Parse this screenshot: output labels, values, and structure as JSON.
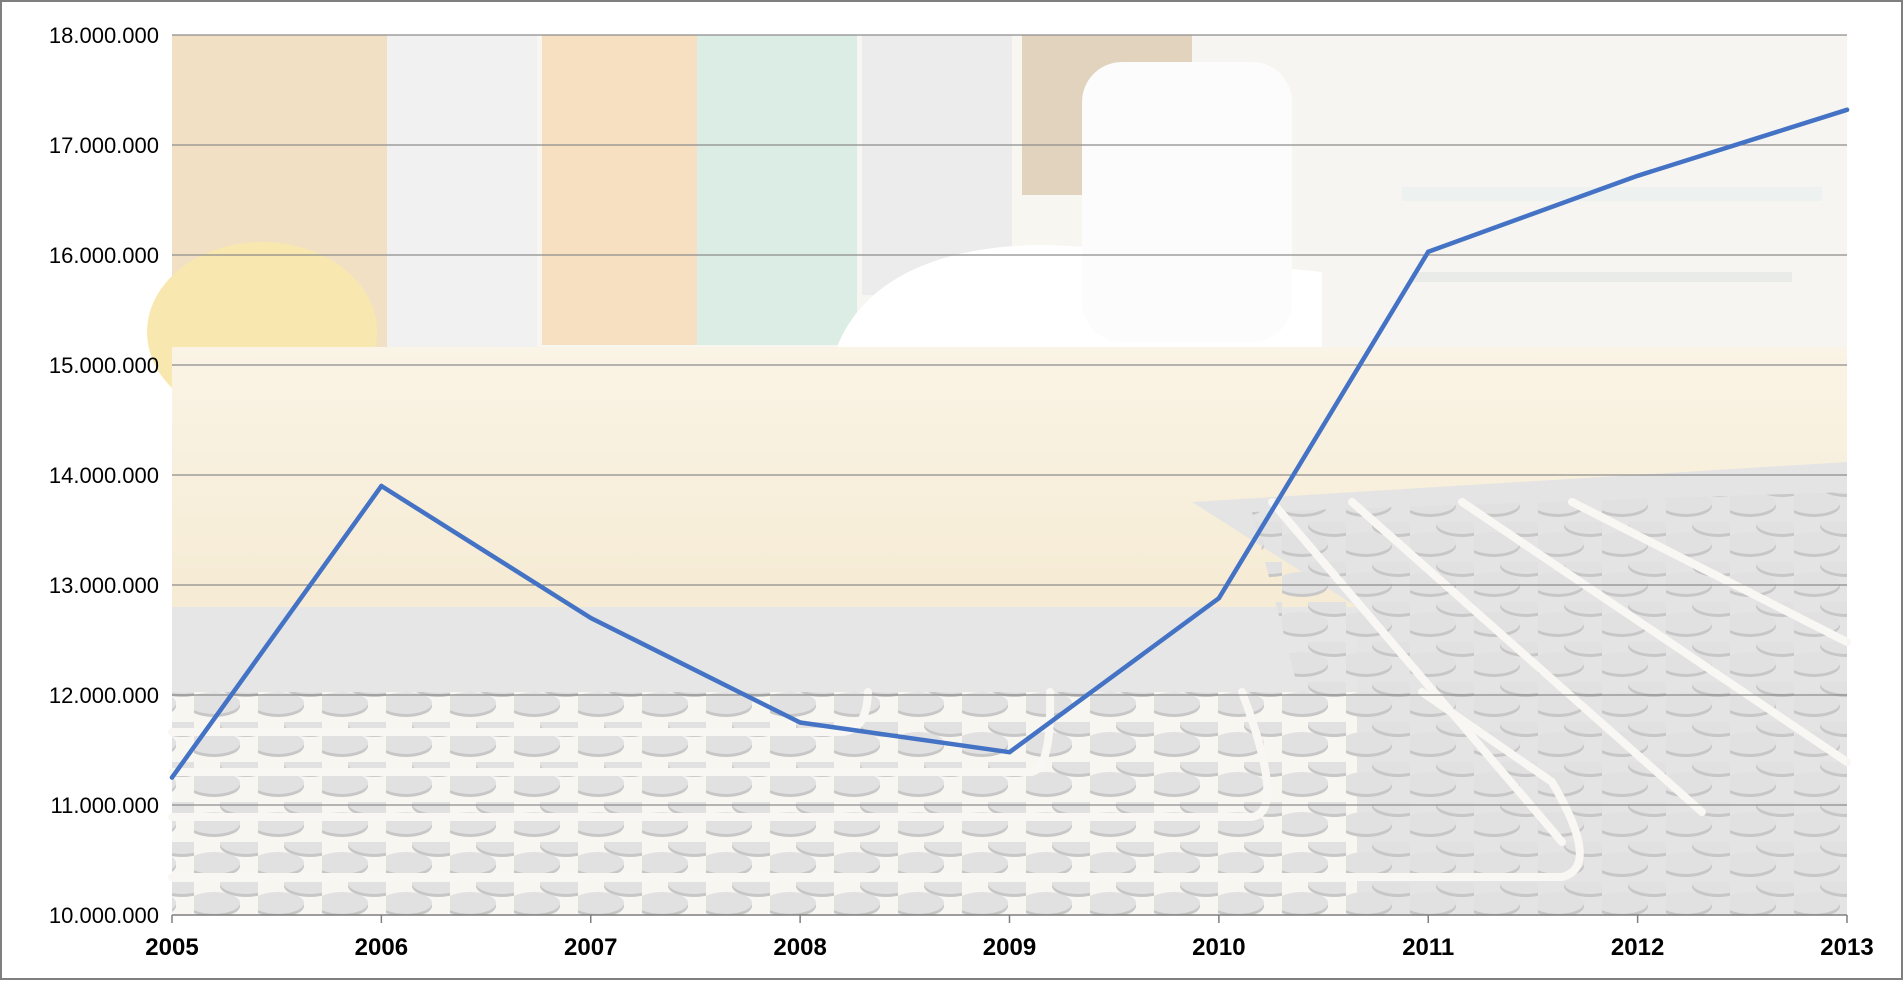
{
  "chart_data": {
    "type": "line",
    "title": "",
    "xlabel": "",
    "ylabel": "",
    "x": [
      "2005",
      "2006",
      "2007",
      "2008",
      "2009",
      "2010",
      "2011",
      "2012",
      "2013"
    ],
    "series": [
      {
        "values": [
          11250000,
          13900000,
          12700000,
          11750000,
          11480000,
          12880000,
          16030000,
          16720000,
          17320000
        ]
      }
    ],
    "ylim": [
      10000000,
      18000000
    ],
    "yticks": [
      "10.000.000",
      "11.000.000",
      "12.000.000",
      "13.000.000",
      "14.000.000",
      "15.000.000",
      "16.000.000",
      "17.000.000",
      "18.000.000"
    ],
    "grid": true,
    "legend": "none",
    "colors": {
      "line": "#4472c4",
      "grid": "#8c8c8c",
      "axis": "#7f7f7f",
      "text": "#000000"
    },
    "background": "living room with underfloor heating pipes (faded photo)"
  }
}
